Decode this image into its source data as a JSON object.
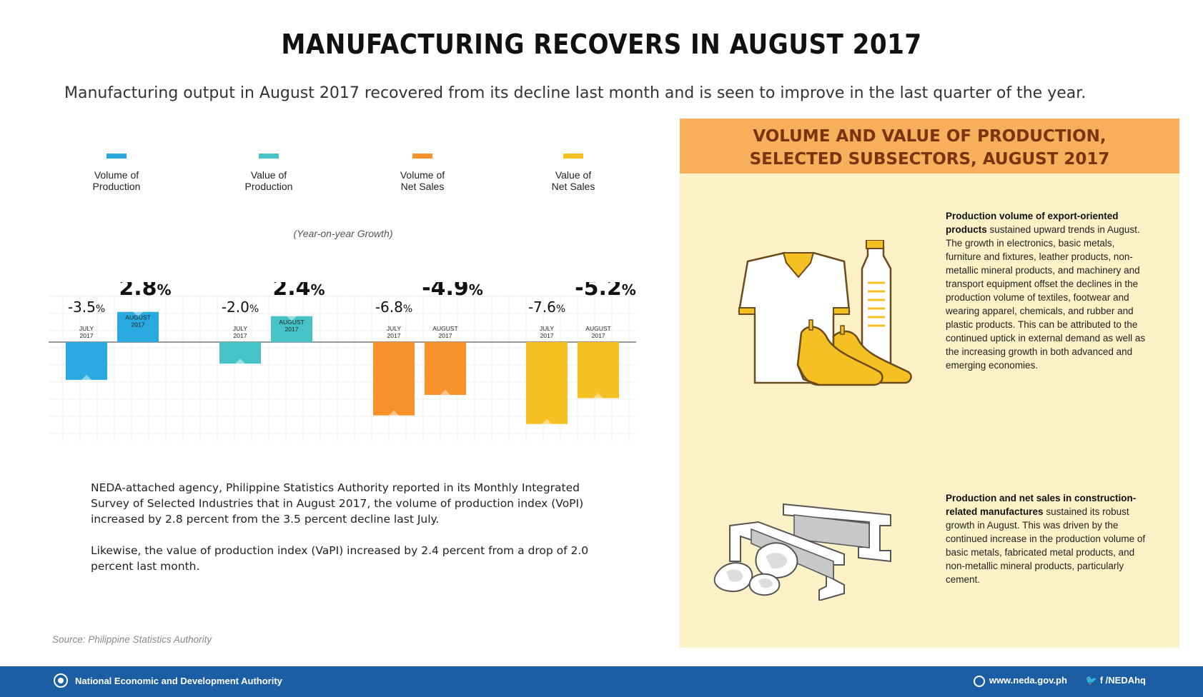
{
  "title": "MANUFACTURING RECOVERS IN AUGUST 2017",
  "subtitle": "Manufacturing output in August 2017 recovered from its decline last month and is seen to improve in the last quarter of the year.",
  "legend": [
    {
      "line1": "Volume of",
      "line2": "Production",
      "color": "#28aae1"
    },
    {
      "line1": "Value of",
      "line2": "Production",
      "color": "#45c3c6"
    },
    {
      "line1": "Volume of",
      "line2": "Net Sales",
      "color": "#f7922b"
    },
    {
      "line1": "Value of",
      "line2": "Net Sales",
      "color": "#f5c022"
    }
  ],
  "chart_note": "(Year-on-year Growth)",
  "chart_data": {
    "type": "bar",
    "unit": "%",
    "categories": [
      "JULY 2017",
      "AUGUST 2017"
    ],
    "series": [
      {
        "name": "Volume of Production",
        "color": "#28aae1",
        "values": [
          -3.5,
          2.8
        ],
        "labels": [
          "-3.5%",
          "2.8%"
        ]
      },
      {
        "name": "Value of Production",
        "color": "#45c3c6",
        "values": [
          -2.0,
          2.4
        ],
        "labels": [
          "-2.0%",
          "2.4%"
        ]
      },
      {
        "name": "Volume of Net Sales",
        "color": "#f7922b",
        "values": [
          -6.8,
          -4.9
        ],
        "labels": [
          "-6.8%",
          "-4.9%"
        ]
      },
      {
        "name": "Value of Net Sales",
        "color": "#f5c022",
        "values": [
          -7.6,
          -5.2
        ],
        "labels": [
          "-7.6%",
          "-5.2%"
        ]
      }
    ],
    "period_labels": [
      [
        "JULY",
        "2017"
      ],
      [
        "AUGUST",
        "2017"
      ]
    ],
    "grid": true
  },
  "body": {
    "para1": "NEDA-attached agency, Philippine Statistics Authority reported in its Monthly Integrated Survey of Selected Industries that in August 2017, the volume of production index (VoPI) increased by 2.8 percent from the 3.5 percent decline last July.",
    "para2": "Likewise, the value of production index (VaPI) increased by 2.4 percent from a drop of 2.0 percent last month."
  },
  "source": "Source: Philippine Statistics Authority",
  "panel": {
    "header_line1": "VOLUME AND VALUE OF PRODUCTION,",
    "header_line2": "SELECTED SUBSECTORS, AUGUST 2017",
    "block1_bold": "Production volume of export-oriented products",
    "block1_text": " sustained upward trends in August. The growth in electronics, basic metals, furniture and fixtures, leather products, non-metallic mineral products, and machinery and transport equipment offset the declines in the production volume of textiles, footwear and wearing apparel, chemicals, and rubber and plastic products. This can be attributed to the continued uptick in external demand as well as the increasing growth in both advanced and emerging economies.",
    "block2_bold": "Production and net sales in construction-related manufactures",
    "block2_text": " sustained its robust growth in August. This was driven by the continued increase in the production volume of basic metals, fabricated metal products, and non-metallic mineral products, particularly cement."
  },
  "footer": {
    "org": "National Economic and Development Authority",
    "website": "www.neda.gov.ph",
    "social": "/NEDAhq",
    "social_glyphs": "🐦 f"
  }
}
